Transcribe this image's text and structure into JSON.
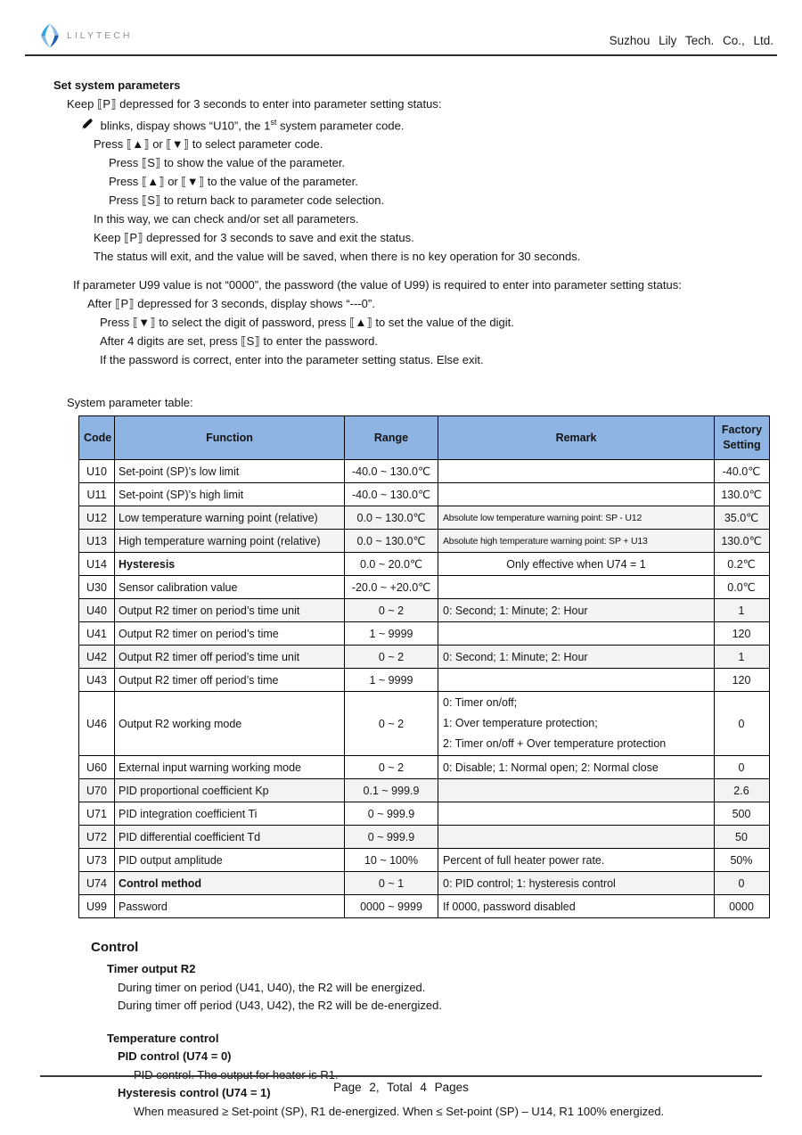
{
  "header": {
    "logo_text": "LILYTECH",
    "company": "Suzhou Lily Tech. Co., Ltd.",
    "logo_colors": {
      "light_blue": "#2fa8e1",
      "dark_blue": "#1c5fa8"
    }
  },
  "set_system_parameters": {
    "title": "Set system parameters",
    "lines": [
      {
        "i": 1,
        "t": "Keep ⟦P⟧ depressed for 3 seconds to enter into parameter setting status:"
      },
      {
        "i": 2,
        "icon": "pen-icon",
        "parts": [
          {
            "t": "blinks, dispay shows “U10”, the 1"
          },
          {
            "t": "st",
            "sup": true
          },
          {
            "t": " system parameter code."
          }
        ]
      },
      {
        "i": 3,
        "t": "Press ⟦▲⟧ or ⟦▼⟧ to select parameter code."
      },
      {
        "i": 4,
        "t": "Press ⟦S⟧ to show the value of the parameter."
      },
      {
        "i": 4,
        "t": "Press ⟦▲⟧ or ⟦▼⟧ to the value of the parameter."
      },
      {
        "i": 4,
        "t": "Press ⟦S⟧ to return back to parameter code selection."
      },
      {
        "i": 3,
        "t": "In this way, we can check and/or set all parameters."
      },
      {
        "i": 3,
        "t": "Keep ⟦P⟧ depressed for 3 seconds to save and exit the status."
      },
      {
        "i": 3,
        "t": "The status will exit, and the value will be saved, when there is no key operation for 30 seconds."
      }
    ]
  },
  "password_section": {
    "lines": [
      {
        "i": 1,
        "t": "If parameter U99 value is not “0000”, the password (the value of U99) is required to enter into parameter setting status:"
      },
      {
        "i": 2,
        "t": "After ⟦P⟧ depressed for 3 seconds, display shows “---0”."
      },
      {
        "i": 3,
        "t": "Press ⟦▼⟧ to select the digit of password, press ⟦▲⟧ to set the value of the digit."
      },
      {
        "i": 3,
        "t": "After 4 digits are set, press ⟦S⟧ to enter the password."
      },
      {
        "i": 3,
        "t": "If the password is correct, enter into the parameter setting status. Else exit."
      }
    ]
  },
  "table": {
    "caption": "System parameter table:",
    "header_bg": "#8DB4E2",
    "columns": [
      "Code",
      "Function",
      "Range",
      "Remark",
      "Factory Setting"
    ],
    "rows": [
      {
        "code": "U10",
        "fn": "Set-point (SP)’s low limit",
        "range": "-40.0 ~ 130.0℃",
        "remark": "",
        "factory": "-40.0℃"
      },
      {
        "code": "U11",
        "fn": "Set-point (SP)’s high limit",
        "range": "-40.0 ~ 130.0℃",
        "remark": "",
        "factory": "130.0℃"
      },
      {
        "code": "U12",
        "fn": "Low temperature warning point (relative)",
        "range": "0.0 ~ 130.0℃",
        "remark": "Absolute low temperature warning point: SP - U12",
        "factory": "35.0℃",
        "rs": 1,
        "sh": 1
      },
      {
        "code": "U13",
        "fn": "High temperature warning point (relative)",
        "range": "0.0 ~ 130.0℃",
        "remark": "Absolute high temperature warning point: SP + U13",
        "factory": "130.0℃",
        "rs": 1,
        "sh": 1
      },
      {
        "code": "U14",
        "fn": "Hysteresis",
        "b": 1,
        "range": "0.0 ~ 20.0℃",
        "remark": "Only effective when U74 = 1",
        "ra": "c",
        "factory": "0.2℃"
      },
      {
        "code": "U30",
        "fn": "Sensor calibration value",
        "range": "-20.0 ~ +20.0℃",
        "remark": "",
        "factory": "0.0℃"
      },
      {
        "code": "U40",
        "fn": "Output R2 timer on period’s time unit",
        "range": "0 ~ 2",
        "remark": "0: Second; 1: Minute; 2: Hour",
        "factory": "1",
        "sh": 1
      },
      {
        "code": "U41",
        "fn": "Output R2 timer on period’s time",
        "range": "1 ~ 9999",
        "remark": "",
        "factory": "120"
      },
      {
        "code": "U42",
        "fn": "Output R2 timer off period’s time unit",
        "range": "0 ~ 2",
        "remark": "0: Second; 1: Minute; 2: Hour",
        "factory": "1",
        "sh": 1
      },
      {
        "code": "U43",
        "fn": "Output R2 timer off period’s time",
        "range": "1 ~ 9999",
        "remark": "",
        "factory": "120"
      },
      {
        "code": "U46",
        "fn": "Output R2 working mode",
        "range": "0 ~ 2",
        "remark": [
          "0: Timer on/off;",
          "1: Over temperature protection;",
          "2: Timer on/off + Over temperature protection"
        ],
        "factory": "0"
      },
      {
        "code": "U60",
        "fn": "External input warning working mode",
        "range": "0 ~ 2",
        "remark": "0: Disable; 1: Normal open; 2: Normal close",
        "factory": "0"
      },
      {
        "code": "U70",
        "fn": "PID proportional coefficient Kp",
        "range": "0.1 ~ 999.9",
        "remark": "",
        "factory": "2.6",
        "sh": 1
      },
      {
        "code": "U71",
        "fn": "PID integration coefficient Ti",
        "range": "0 ~ 999.9",
        "remark": "",
        "factory": "500"
      },
      {
        "code": "U72",
        "fn": "PID differential coefficient Td",
        "range": "0 ~ 999.9",
        "remark": "",
        "factory": "50",
        "sh": 1
      },
      {
        "code": "U73",
        "fn": "PID output amplitude",
        "range": "10 ~ 100%",
        "remark": "Percent of full heater power rate.",
        "factory": "50%"
      },
      {
        "code": "U74",
        "fn": "Control method",
        "b": 1,
        "range": "0 ~ 1",
        "remark": "0: PID control; 1: hysteresis control",
        "factory": "0",
        "sh": 1
      },
      {
        "code": "U99",
        "fn": "Password",
        "range": "0000 ~ 9999",
        "remark": "If 0000, password disabled",
        "factory": "0000"
      }
    ]
  },
  "control": {
    "title": "Control",
    "lines": [
      {
        "i": 1,
        "b": 1,
        "t": "Timer output R2"
      },
      {
        "i": 2,
        "t": "During timer on period (U41, U40), the R2 will be energized."
      },
      {
        "i": 2,
        "t": "During timer off period (U43, U42), the R2 will be de-energized."
      },
      {
        "i": 1,
        "b": 1,
        "gap": 1,
        "t": "Temperature control"
      },
      {
        "i": 2,
        "b": 1,
        "t": "PID control (U74 = 0)"
      },
      {
        "i": 3,
        "t": "PID control. The output for heater is R1."
      },
      {
        "i": 2,
        "b": 1,
        "t": "Hysteresis control (U74 = 1)"
      },
      {
        "i": 3,
        "t": "When measured ≥ Set-point (SP), R1 de-energized. When ≤ Set-point (SP) – U14, R1 100% energized."
      }
    ]
  },
  "footer": {
    "page_text": "Page 2, Total 4 Pages"
  }
}
